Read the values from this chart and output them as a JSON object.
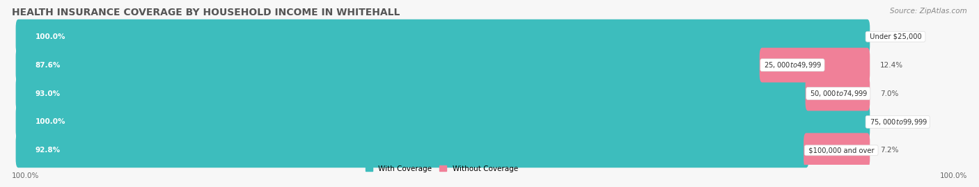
{
  "title": "HEALTH INSURANCE COVERAGE BY HOUSEHOLD INCOME IN WHITEHALL",
  "source": "Source: ZipAtlas.com",
  "categories": [
    "Under $25,000",
    "$25,000 to $49,999",
    "$50,000 to $74,999",
    "$75,000 to $99,999",
    "$100,000 and over"
  ],
  "with_coverage": [
    100.0,
    87.6,
    93.0,
    100.0,
    92.8
  ],
  "without_coverage": [
    0.0,
    12.4,
    7.0,
    0.0,
    7.2
  ],
  "color_with": "#3dbdbd",
  "color_without": "#f08098",
  "color_row_bg": "#e8e8e8",
  "figsize": [
    14.06,
    2.69
  ],
  "dpi": 100,
  "legend_labels": [
    "With Coverage",
    "Without Coverage"
  ],
  "bottom_left_label": "100.0%",
  "bottom_right_label": "100.0%",
  "title_fontsize": 10,
  "label_fontsize": 7.5,
  "tick_fontsize": 7.5,
  "source_fontsize": 7.5
}
